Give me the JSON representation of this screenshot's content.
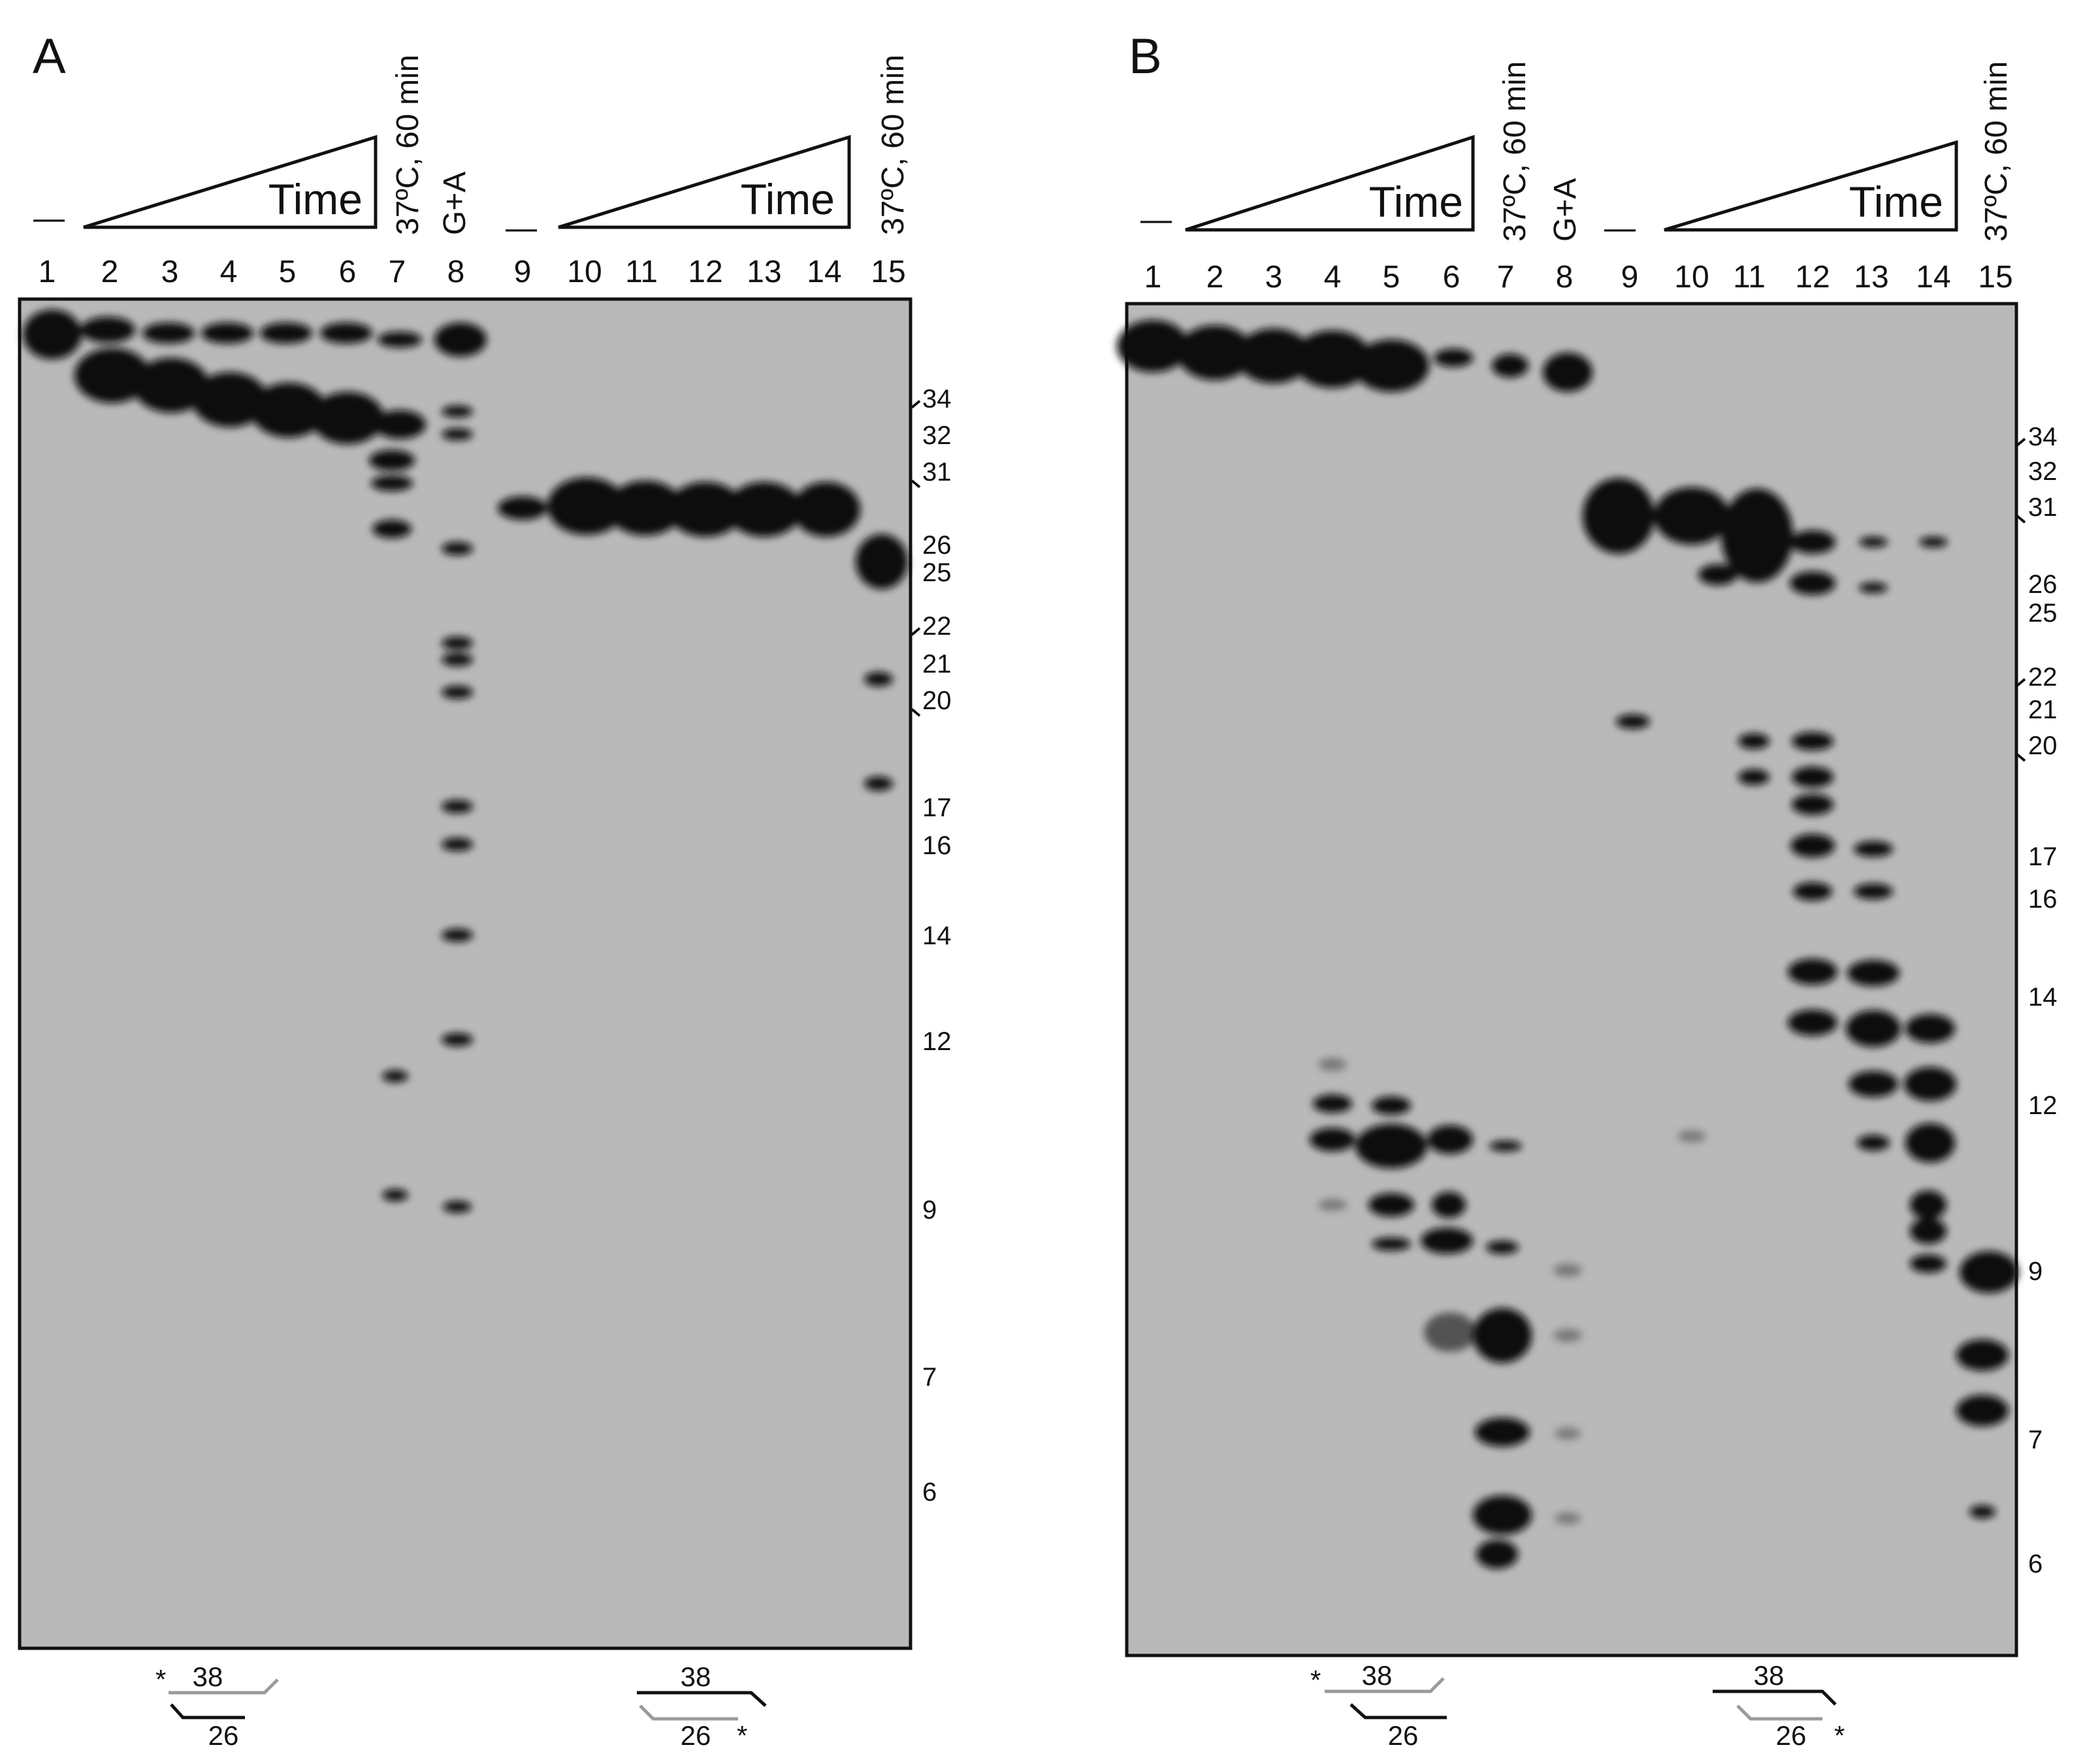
{
  "panels": [
    {
      "letter": "A",
      "lane_numbers": [
        "1",
        "2",
        "3",
        "4",
        "5",
        "6",
        "7",
        "8",
        "9",
        "10",
        "11",
        "12",
        "13",
        "14",
        "15"
      ],
      "minus_mark": "—",
      "time_label": "Time",
      "condition_label": "37ºC, 60 min",
      "ladder_label": "G+A",
      "size_markers": [
        "34",
        "32",
        "31",
        "26",
        "25",
        "22",
        "21",
        "20",
        "17",
        "16",
        "14",
        "12",
        "9",
        "7",
        "6"
      ],
      "duplexes": [
        {
          "top_length": "38",
          "bottom_length": "26",
          "label_mark": "*"
        },
        {
          "top_length": "38",
          "bottom_length": "26",
          "label_mark": "*"
        }
      ]
    },
    {
      "letter": "B",
      "lane_numbers": [
        "1",
        "2",
        "3",
        "4",
        "5",
        "6",
        "7",
        "8",
        "9",
        "10",
        "11",
        "12",
        "13",
        "14",
        "15"
      ],
      "minus_mark": "—",
      "time_label": "Time",
      "condition_label": "37ºC, 60 min",
      "ladder_label": "G+A",
      "size_markers": [
        "34",
        "32",
        "31",
        "26",
        "25",
        "22",
        "21",
        "20",
        "17",
        "16",
        "14",
        "12",
        "9",
        "7",
        "6"
      ],
      "duplexes": [
        {
          "top_length": "38",
          "bottom_length": "26",
          "label_mark": "*"
        },
        {
          "top_length": "38",
          "bottom_length": "26",
          "label_mark": "*"
        }
      ]
    }
  ],
  "colors": {
    "gel_background": "#b9b9b9",
    "band": "#0a0a0a",
    "frame": "#111111",
    "strand_black": "#111111",
    "strand_gray": "#9a9a9a"
  }
}
